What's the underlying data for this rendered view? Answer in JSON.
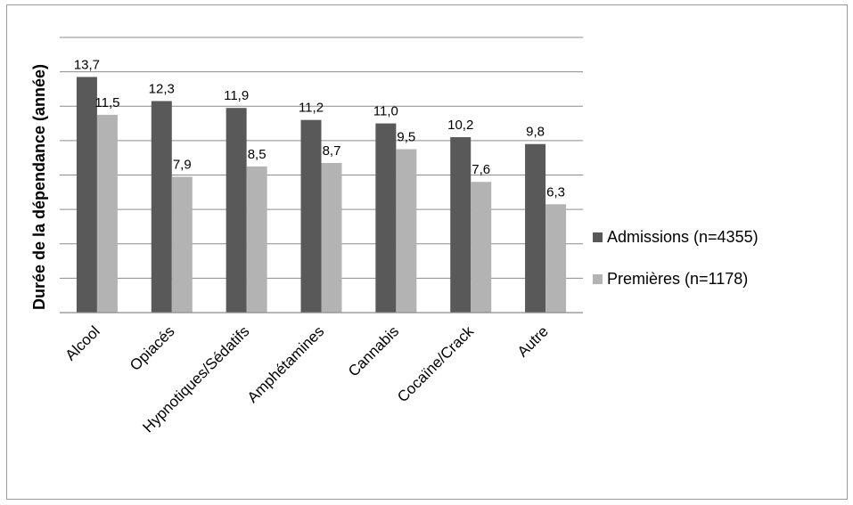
{
  "chart_data": {
    "type": "bar",
    "title": "",
    "xlabel": "",
    "ylabel": "Durée de la dépendance (année)",
    "ylim": [
      0,
      16
    ],
    "grid": true,
    "legend_position": "right",
    "categories": [
      "Alcool",
      "Opiacés",
      "Hypnotiques/Sédatifs",
      "Amphétamines",
      "Cannabis",
      "Cocaïne/Crack",
      "Autre"
    ],
    "series": [
      {
        "name": "Admissions (n=4355)",
        "color": "#595959",
        "values": [
          13.7,
          12.3,
          11.9,
          11.2,
          11.0,
          10.2,
          9.8
        ],
        "labels": [
          "13,7",
          "12,3",
          "11,9",
          "11,2",
          "11,0",
          "10,2",
          "9,8"
        ]
      },
      {
        "name": "Premières (n=1178)",
        "color": "#b3b3b3",
        "values": [
          11.5,
          7.9,
          8.5,
          8.7,
          9.5,
          7.6,
          6.3
        ],
        "labels": [
          "11,5",
          "7,9",
          "8,5",
          "8,7",
          "9,5",
          "7,6",
          "6,3"
        ]
      }
    ]
  }
}
